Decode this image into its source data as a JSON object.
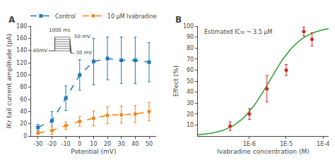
{
  "chart_data": [
    {
      "type": "line",
      "title": "A",
      "xlabel": "Potential (mV)",
      "ylabel": "IKr tail current amplitude (pA)",
      "xlim": [
        -35,
        55
      ],
      "xticks": [
        -30,
        -20,
        -10,
        0,
        10,
        20,
        30,
        40,
        50
      ],
      "ylim": [
        0,
        180
      ],
      "yticks": [
        0,
        20,
        40,
        60,
        80,
        100,
        120,
        140,
        160,
        180
      ],
      "grid": false,
      "legend": "top",
      "series": [
        {
          "name": "Control",
          "marker": "square",
          "line_style": "dashed",
          "x": [
            -30,
            -20,
            -10,
            0,
            10,
            20,
            30,
            40,
            50
          ],
          "values": [
            14,
            25,
            62,
            100,
            122,
            127,
            124,
            124,
            121
          ],
          "yerr": [
            5,
            15,
            20,
            25,
            38,
            35,
            38,
            38,
            32
          ]
        },
        {
          "name": "10 μM Ivabradine",
          "marker": "circle",
          "line_style": "dashed",
          "x": [
            -30,
            -20,
            -10,
            0,
            10,
            20,
            30,
            40,
            50
          ],
          "values": [
            5,
            9,
            17,
            24,
            29,
            34,
            35,
            36,
            40
          ],
          "yerr": [
            2,
            6,
            6,
            8,
            12,
            14,
            14,
            14,
            15
          ]
        }
      ],
      "annotations": [
        "1000 ms",
        "50 mV",
        "-30 mV",
        "-40mV"
      ]
    },
    {
      "type": "scatter",
      "title": "B",
      "xlabel": "Ivabradine concentration (M)",
      "ylabel": "Effect (%)",
      "log": "x",
      "xlim": [
        3.98107e-08,
        0.000141254
      ],
      "xticks": [
        {
          "value": 1e-06,
          "label": "1E-6"
        },
        {
          "value": 1e-05,
          "label": "1E-5"
        },
        {
          "value": 0.0001,
          "label": "1E-4"
        }
      ],
      "ylim": [
        0,
        100
      ],
      "yticks": [
        10,
        20,
        30,
        40,
        50,
        60,
        70,
        80,
        90,
        100
      ],
      "grid": false,
      "series": [
        {
          "type": "line",
          "line_style": "solid",
          "x": [
            3.9811e-08,
            5.0119e-08,
            6.3096e-08,
            7.9433e-08,
            1e-07,
            1.2589e-07,
            1.5849e-07,
            1.9953e-07,
            2.5119e-07,
            3.1623e-07,
            3.9811e-07,
            5.0119e-07,
            6.3096e-07,
            7.9433e-07,
            1e-06,
            1.2589e-06,
            1.5849e-06,
            1.9953e-06,
            2.5119e-06,
            3.1623e-06,
            3.9811e-06,
            5.0119e-06,
            6.3096e-06,
            7.9433e-06,
            1e-05,
            1.2589e-05,
            1.5849e-05,
            1.9953e-05,
            2.5119e-05,
            3.1623e-05,
            3.9811e-05,
            5.0119e-05,
            6.3096e-05,
            7.9433e-05,
            0.0001,
            0.00012589,
            0.000141254
          ],
          "values": [
            1.125,
            1.412,
            1.771,
            2.219,
            2.778,
            3.472,
            4.332,
            5.393,
            6.696,
            8.286,
            10.213,
            12.526,
            15.274,
            18.497,
            22.222,
            26.454,
            31.168,
            36.308,
            41.782,
            47.465,
            53.215,
            58.881,
            64.32,
            69.415,
            74.074,
            78.246,
            81.911,
            85.076,
            87.77,
            90.035,
            91.919,
            93.472,
            94.744,
            95.78,
            96.618,
            97.295,
            97.582
          ]
        },
        {
          "type": "scatter",
          "marker": "circle",
          "x": [
            3e-07,
            1e-06,
            3e-06,
            1e-05,
            3e-05,
            5e-05
          ],
          "values": [
            9,
            20,
            43,
            60,
            95,
            88
          ],
          "yerr": [
            4,
            5,
            12,
            5,
            4,
            6
          ]
        }
      ],
      "annotations": [
        "Estimated IC₅₀ ~ 3.5 μM"
      ]
    }
  ]
}
